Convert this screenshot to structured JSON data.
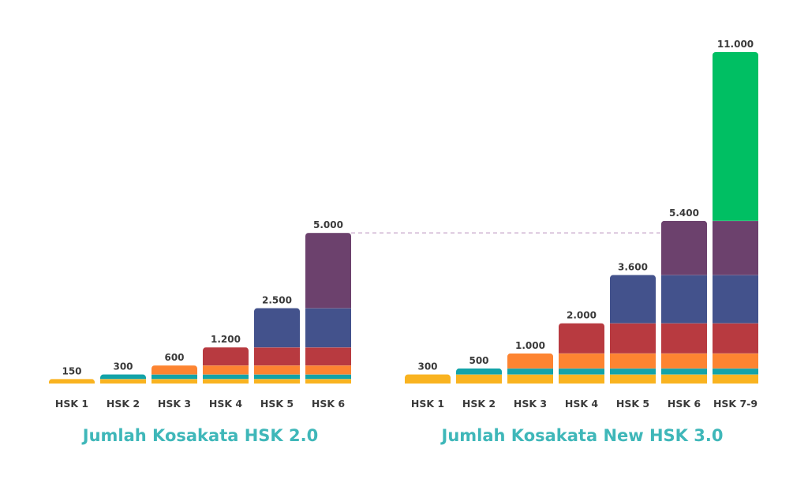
{
  "chart_data": [
    {
      "type": "bar",
      "stacked": true,
      "title": "Jumlah Kosakata HSK 2.0",
      "categories": [
        "HSK 1",
        "HSK 2",
        "HSK 3",
        "HSK 4",
        "HSK 5",
        "HSK 6"
      ],
      "values": [
        150,
        300,
        600,
        1200,
        2500,
        5000
      ],
      "value_labels": [
        "150",
        "300",
        "600",
        "1.200",
        "2.500",
        "5.000"
      ],
      "xlabel": "",
      "ylabel": "",
      "grid": false
    },
    {
      "type": "bar",
      "stacked": true,
      "title": "Jumlah Kosakata New HSK 3.0",
      "categories": [
        "HSK 1",
        "HSK 2",
        "HSK 3",
        "HSK 4",
        "HSK 5",
        "HSK 6",
        "HSK 7-9"
      ],
      "values": [
        300,
        500,
        1000,
        2000,
        3600,
        5400,
        11000
      ],
      "value_labels": [
        "300",
        "500",
        "1.000",
        "2.000",
        "3.600",
        "5.400",
        "11.000"
      ],
      "xlabel": "",
      "ylabel": "",
      "grid": false
    }
  ],
  "level_colors": [
    "#F9B320",
    "#12A3A8",
    "#FD8431",
    "#B83A40",
    "#43528C",
    "#6C416D",
    "#00BF63"
  ],
  "reference_line": {
    "from": "HSK 2.0 HSK 6",
    "to": "New HSK 3.0 HSK 6",
    "color": "#C9A8CC"
  }
}
